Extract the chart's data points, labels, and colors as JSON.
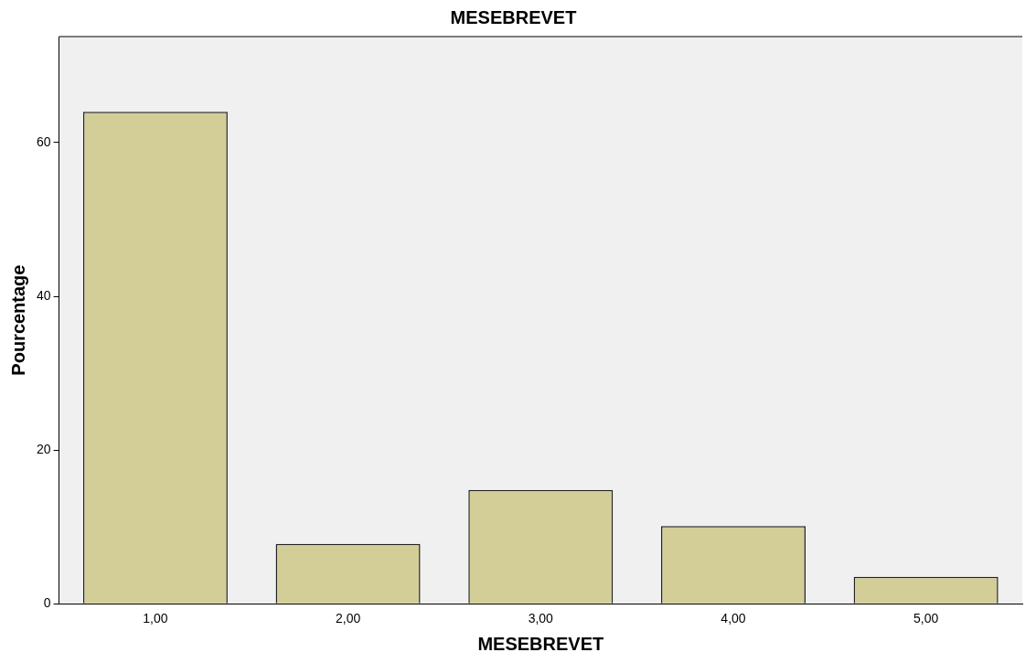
{
  "chart_data": {
    "type": "bar",
    "title": "MESEBREVET",
    "xlabel": "MESEBREVET",
    "ylabel": "Pourcentage",
    "categories": [
      "1,00",
      "2,00",
      "3,00",
      "4,00",
      "5,00"
    ],
    "values": [
      64.0,
      7.8,
      14.8,
      10.1,
      3.5
    ],
    "color": "#d3ce97",
    "ylim": [
      0,
      73.8
    ],
    "yticks": [
      0,
      20,
      40,
      60
    ],
    "grid": false,
    "legend": false
  }
}
